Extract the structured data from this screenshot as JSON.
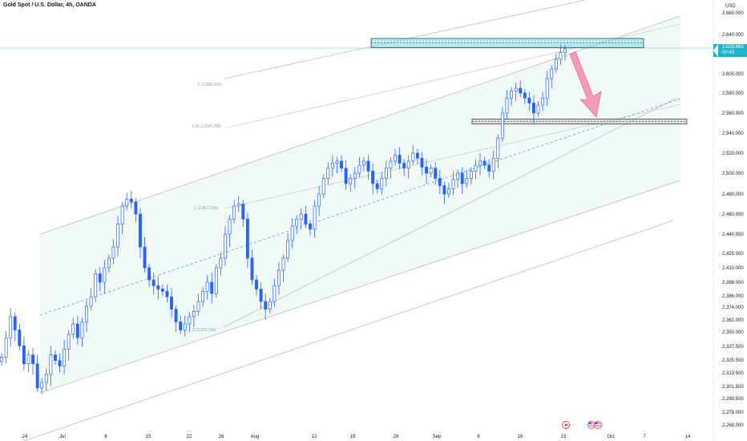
{
  "header": {
    "symbol_title": "Gold Spot / U.S. Dollar, 4h, OANDA",
    "currency": "USD"
  },
  "price_tag": {
    "price": "2,625.665",
    "countdown": "00:43",
    "color": "#22b3c9"
  },
  "chart_data": {
    "type": "candlestick",
    "title": "Gold Spot / U.S. Dollar, 4h, OANDA",
    "ylabel": "USD",
    "y_ticks": [
      "2,660.000",
      "2,640.000",
      "2,620.000",
      "2,600.000",
      "2,580.000",
      "2,560.000",
      "2,540.000",
      "2,520.000",
      "2,500.000",
      "2,480.000",
      "2,460.000",
      "2,440.000",
      "2,425.000",
      "2,410.000",
      "2,398.000",
      "2,386.000",
      "2,374.000",
      "2,362.000",
      "2,350.000",
      "2,337.500",
      "2,325.500",
      "2,313.500",
      "2,301.500",
      "2,289.500",
      "2,278.000",
      "2,268.000"
    ],
    "x_ticks": [
      "24",
      "Jul",
      "8",
      "15",
      "22",
      "26",
      "Aug",
      "12",
      "19",
      "26",
      "Sep",
      "9",
      "16",
      "23",
      "Oct",
      "7",
      "14"
    ],
    "fib_labels": [
      {
        "text": "2 (2,588.003)",
        "price": 2588.003
      },
      {
        "text": "1.66 (2,546.295)",
        "price": 2546.295
      },
      {
        "text": "1 (2,467.204)",
        "price": 2467.204
      },
      {
        "text": "0 (2,352.026)",
        "price": 2352.026
      }
    ],
    "close_approx": [
      2328,
      2345,
      2365,
      2352,
      2338,
      2322,
      2330,
      2322,
      2300,
      2305,
      2312,
      2330,
      2325,
      2320,
      2335,
      2348,
      2358,
      2345,
      2360,
      2375,
      2385,
      2405,
      2398,
      2410,
      2420,
      2430,
      2450,
      2468,
      2475,
      2472,
      2460,
      2430,
      2410,
      2400,
      2395,
      2392,
      2390,
      2385,
      2372,
      2360,
      2352,
      2358,
      2365,
      2370,
      2380,
      2390,
      2398,
      2388,
      2410,
      2420,
      2440,
      2455,
      2468,
      2470,
      2455,
      2420,
      2400,
      2392,
      2380,
      2372,
      2380,
      2395,
      2408,
      2420,
      2435,
      2448,
      2455,
      2460,
      2450,
      2445,
      2468,
      2480,
      2495,
      2505,
      2510,
      2512,
      2505,
      2490,
      2495,
      2500,
      2508,
      2512,
      2502,
      2490,
      2485,
      2495,
      2505,
      2512,
      2518,
      2510,
      2505,
      2512,
      2520,
      2515,
      2506,
      2500,
      2505,
      2495,
      2488,
      2480,
      2485,
      2494,
      2500,
      2490,
      2495,
      2502,
      2508,
      2512,
      2508,
      2502,
      2515,
      2535,
      2560,
      2575,
      2582,
      2585,
      2580,
      2575,
      2570,
      2560,
      2568,
      2575,
      2595,
      2605,
      2615,
      2622,
      2625.665
    ],
    "zones": {
      "supply": {
        "low": 2627,
        "high": 2636,
        "color": "#7fd9e8"
      },
      "target": {
        "low": 2549,
        "high": 2554,
        "color": "#c8c8c8"
      }
    },
    "arrow_color": "#f28bb0",
    "channel_fill": "#e6f5f1",
    "candle_color": "#2962ff",
    "grid": false,
    "legend": "none"
  }
}
